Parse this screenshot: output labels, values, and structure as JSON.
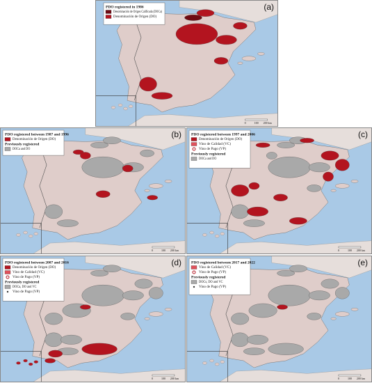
{
  "scale_bar": [
    "0",
    "100",
    "200 km"
  ],
  "panels": [
    {
      "label": "(a)",
      "title": "PDO registered in 1986",
      "items": [
        {
          "text": "Denominación de Origen Calificada (DOCa)",
          "color": "#6e0a12"
        },
        {
          "text": "Denominación de Origen (DO)",
          "color": "#b3141f"
        }
      ]
    },
    {
      "label": "(b)",
      "title": "PDO registered between 1987 and 1996",
      "items": [
        {
          "text": "Denominación de Origen (DO)",
          "color": "#b3141f"
        }
      ],
      "previous_title": "Previously registered",
      "previous_items": [
        {
          "text": "DOCa and DO",
          "color": "#a9a9a9"
        }
      ]
    },
    {
      "label": "(c)",
      "title": "PDO registered between 1997 and 2006",
      "items": [
        {
          "text": "Denominación de Origen (DO)",
          "color": "#b3141f"
        },
        {
          "text": "Vino de Calidad (VC)",
          "color": "#e0505a"
        },
        {
          "text": "Vino de Pago (VP)",
          "color": "#b3141f",
          "marker": "circle"
        }
      ],
      "previous_title": "Previously registered",
      "previous_items": [
        {
          "text": "DOCa and DO",
          "color": "#a9a9a9"
        }
      ]
    },
    {
      "label": "(d)",
      "title": "PDO registered between 2007 and 2016",
      "items": [
        {
          "text": "Denominación de Origen (DO)",
          "color": "#b3141f"
        },
        {
          "text": "Vino de Calidad (VC)",
          "color": "#e0505a"
        },
        {
          "text": "Vino de Pago (VP)",
          "color": "#b3141f",
          "marker": "circle"
        }
      ],
      "previous_title": "Previously registered",
      "previous_items": [
        {
          "text": "DOCa, DO and VC",
          "color": "#a9a9a9"
        },
        {
          "text": "Vino de Pago (VP)",
          "color": "#333333",
          "marker": "dot"
        }
      ]
    },
    {
      "label": "(e)",
      "title": "PDO registered between 2017 and 2022",
      "items": [
        {
          "text": "Vino de Calidad (VC)",
          "color": "#e0505a"
        },
        {
          "text": "Vino de Pago (VP)",
          "color": "#b3141f",
          "marker": "circle"
        }
      ],
      "previous_title": "Previously registered",
      "previous_items": [
        {
          "text": "DOCs, DO and VC",
          "color": "#a9a9a9"
        },
        {
          "text": "Vino de Pago (VP)",
          "color": "#333333",
          "marker": "dot"
        }
      ]
    }
  ]
}
